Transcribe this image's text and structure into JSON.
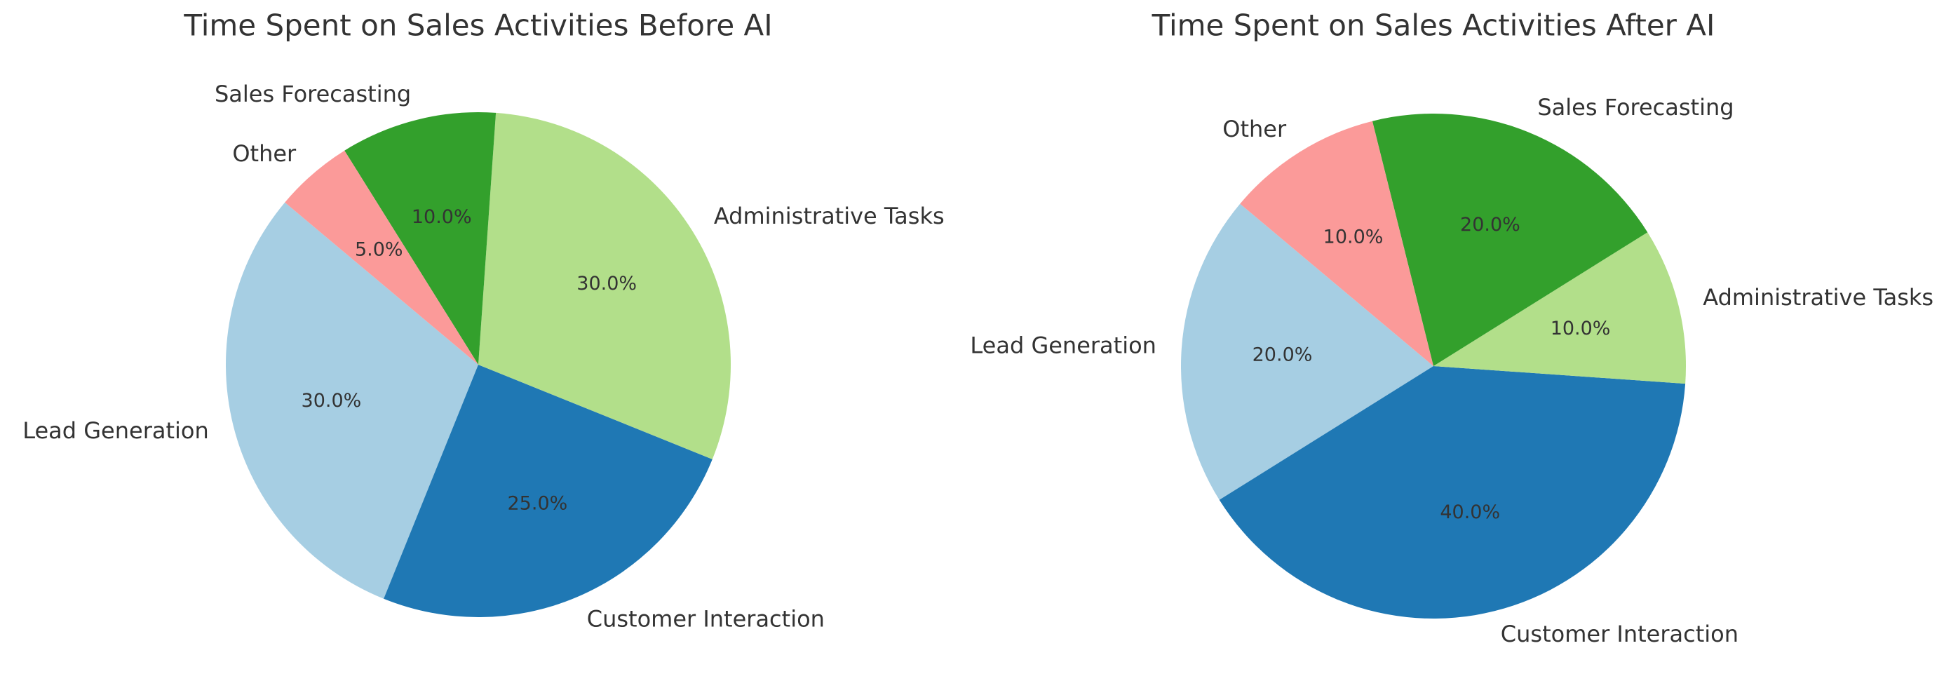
{
  "chart_data": [
    {
      "type": "pie",
      "title": "Time Spent on Sales Activities Before AI",
      "categories": [
        "Lead Generation",
        "Customer Interaction",
        "Administrative Tasks",
        "Sales Forecasting",
        "Other"
      ],
      "values": [
        30,
        25,
        30,
        10,
        5
      ],
      "value_labels": [
        "30.0%",
        "25.0%",
        "30.0%",
        "10.0%",
        "5.0%"
      ],
      "colors": [
        "#a6cee3",
        "#1f78b4",
        "#b2df8a",
        "#33a02c",
        "#fb9a99"
      ]
    },
    {
      "type": "pie",
      "title": "Time Spent on Sales Activities After AI",
      "categories": [
        "Lead Generation",
        "Customer Interaction",
        "Administrative Tasks",
        "Sales Forecasting",
        "Other"
      ],
      "values": [
        20,
        40,
        10,
        20,
        10
      ],
      "value_labels": [
        "20.0%",
        "40.0%",
        "10.0%",
        "20.0%",
        "10.0%"
      ],
      "colors": [
        "#a6cee3",
        "#1f78b4",
        "#b2df8a",
        "#33a02c",
        "#fb9a99"
      ]
    }
  ]
}
